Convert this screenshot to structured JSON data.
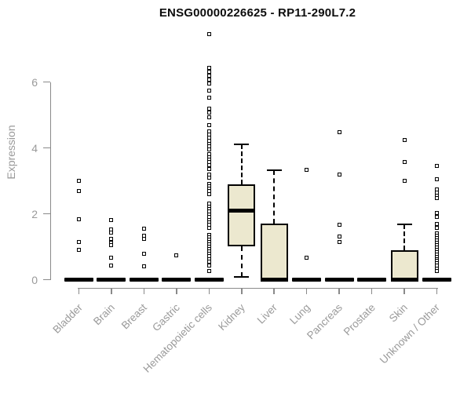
{
  "title": "ENSG00000226625 - RP11-290L7.2",
  "chart_data": {
    "type": "boxplot",
    "title": "ENSG00000226625 - RP11-290L7.2",
    "xlabel": "",
    "ylabel": "Expression",
    "ylim": [
      0,
      6
    ],
    "yticks": [
      0,
      2,
      4,
      6
    ],
    "grid": false,
    "colors": {
      "box_fill": "#ece8cf",
      "box_border": "#000000",
      "axis_line": "#8a8a8a",
      "axis_text": "#9a9a9a",
      "title_text": "#0d0d0d"
    },
    "categories": [
      {
        "label": "Bladder",
        "box": {
          "low": 0,
          "q1": 0,
          "median": 0,
          "q3": 0,
          "high": 0
        },
        "points": [
          3.0,
          2.68,
          1.84,
          1.15,
          0.91
        ]
      },
      {
        "label": "Brain",
        "box": {
          "low": 0,
          "q1": 0,
          "median": 0,
          "q3": 0,
          "high": 0
        },
        "points": [
          1.8,
          1.52,
          1.44,
          1.23,
          1.11,
          1.04,
          0.67,
          0.43
        ]
      },
      {
        "label": "Breast",
        "box": {
          "low": 0,
          "q1": 0,
          "median": 0,
          "q3": 0,
          "high": 0
        },
        "points": [
          1.54,
          1.33,
          1.25,
          0.79,
          0.4
        ]
      },
      {
        "label": "Gastric",
        "box": {
          "low": 0,
          "q1": 0,
          "median": 0,
          "q3": 0,
          "high": 0
        },
        "points": [
          0.75
        ]
      },
      {
        "label": "Hematopoietic cells",
        "box": {
          "low": 0,
          "q1": 0,
          "median": 0,
          "q3": 0,
          "high": 0
        },
        "points": [
          7.45,
          6.42,
          6.3,
          6.18,
          6.08,
          5.96,
          5.75,
          5.52,
          5.2,
          5.06,
          4.93,
          4.68,
          4.5,
          4.4,
          4.3,
          4.22,
          4.12,
          4.04,
          3.96,
          3.8,
          3.72,
          3.64,
          3.56,
          3.48,
          3.35,
          3.18,
          3.1,
          2.9,
          2.83,
          2.76,
          2.68,
          2.6,
          2.3,
          2.22,
          2.14,
          2.06,
          1.98,
          1.9,
          1.82,
          1.74,
          1.66,
          1.58,
          1.35,
          1.28,
          1.21,
          1.14,
          1.07,
          1.0,
          0.93,
          0.86,
          0.79,
          0.72,
          0.63,
          0.55,
          0.44,
          0.27
        ]
      },
      {
        "label": "Kidney",
        "box": {
          "low": 0.08,
          "q1": 1.01,
          "median": 2.1,
          "q3": 2.89,
          "high": 4.11
        },
        "points": []
      },
      {
        "label": "Liver",
        "box": {
          "low": 0,
          "q1": 0,
          "median": 0,
          "q3": 1.7,
          "high": 3.33
        },
        "points": []
      },
      {
        "label": "Lung",
        "box": {
          "low": 0,
          "q1": 0,
          "median": 0,
          "q3": 0,
          "high": 0
        },
        "points": [
          3.34,
          0.67
        ]
      },
      {
        "label": "Pancreas",
        "box": {
          "low": 0,
          "q1": 0,
          "median": 0,
          "q3": 0,
          "high": 0
        },
        "points": [
          4.48,
          3.2,
          1.67,
          1.31,
          1.15
        ]
      },
      {
        "label": "Prostate",
        "box": {
          "low": 0,
          "q1": 0,
          "median": 0,
          "q3": 0,
          "high": 0
        },
        "points": []
      },
      {
        "label": "Skin",
        "box": {
          "low": 0,
          "q1": 0,
          "median": 0,
          "q3": 0.89,
          "high": 1.68
        },
        "points": [
          4.24,
          3.57,
          3.0
        ]
      },
      {
        "label": "Unknown / Other",
        "box": {
          "low": 0,
          "q1": 0,
          "median": 0,
          "q3": 0,
          "high": 0
        },
        "points": [
          3.45,
          3.05,
          2.75,
          2.65,
          2.55,
          2.48,
          2.02,
          1.9,
          1.68,
          1.58,
          1.4,
          1.33,
          1.26,
          1.19,
          1.12,
          1.05,
          0.98,
          0.91,
          0.84,
          0.77,
          0.7,
          0.63,
          0.56,
          0.49,
          0.42,
          0.34,
          0.27
        ]
      }
    ]
  }
}
